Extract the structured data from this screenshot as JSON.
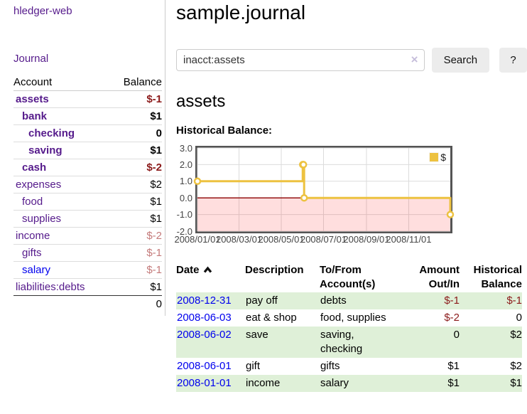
{
  "colors": {
    "link_visited": "#551a8b",
    "link_unvisited": "#0000ee",
    "negative_strong": "#8b1a1a",
    "negative_muted": "#c47a7a",
    "row_stripe_green": "#dff0d8",
    "series_yellow": "#edc240",
    "negative_region_pink": "rgba(255,0,0,0.13)",
    "zero_line_red": "#8b0000",
    "plot_border_gray": "#545454",
    "gridline_gray": "#dcdcdc"
  },
  "sidebar": {
    "app_title": "hledger-web",
    "journal_link": "Journal",
    "accounts": {
      "header_account": "Account",
      "header_balance": "Balance",
      "rows": [
        {
          "name": "assets",
          "balance": "$-1",
          "indent": 1,
          "emph": true,
          "balance_tone": "neg",
          "link_tone": "visited"
        },
        {
          "name": "bank",
          "balance": "$1",
          "indent": 2,
          "emph": true,
          "balance_tone": "pos",
          "link_tone": "visited"
        },
        {
          "name": "checking",
          "balance": "0",
          "indent": 3,
          "emph": true,
          "balance_tone": "pos",
          "link_tone": "visited"
        },
        {
          "name": "saving",
          "balance": "$1",
          "indent": 3,
          "emph": true,
          "balance_tone": "pos",
          "link_tone": "visited"
        },
        {
          "name": "cash",
          "balance": "$-2",
          "indent": 2,
          "emph": true,
          "balance_tone": "neg",
          "link_tone": "visited"
        },
        {
          "name": "expenses",
          "balance": "$2",
          "indent": 1,
          "emph": false,
          "balance_tone": "pos",
          "link_tone": "visited"
        },
        {
          "name": "food",
          "balance": "$1",
          "indent": 2,
          "emph": false,
          "balance_tone": "pos",
          "link_tone": "visited"
        },
        {
          "name": "supplies",
          "balance": "$1",
          "indent": 2,
          "emph": false,
          "balance_tone": "pos",
          "link_tone": "visited"
        },
        {
          "name": "income",
          "balance": "$-2",
          "indent": 1,
          "emph": false,
          "balance_tone": "neg-muted",
          "link_tone": "visited"
        },
        {
          "name": "gifts",
          "balance": "$-1",
          "indent": 2,
          "emph": false,
          "balance_tone": "neg-muted",
          "link_tone": "visited"
        },
        {
          "name": "salary",
          "balance": "$-1",
          "indent": 2,
          "emph": false,
          "balance_tone": "neg-muted",
          "link_tone": "unvisited"
        },
        {
          "name": "liabilities:debts",
          "balance": "$1",
          "indent": 1,
          "emph": false,
          "balance_tone": "pos",
          "link_tone": "visited"
        }
      ],
      "total": "0"
    }
  },
  "main": {
    "page_title": "sample.journal",
    "search": {
      "value": "inacct:assets",
      "clear_icon": "×",
      "search_button": "Search",
      "help_button": "?"
    },
    "account_heading": "assets",
    "chart_title": "Historical Balance:"
  },
  "chart_data": {
    "type": "line",
    "style": "step",
    "title": "Historical Balance",
    "legend_label": "$",
    "legend_position": "top-right",
    "grid": true,
    "xlim": [
      "2008-01-01",
      "2008-12-31"
    ],
    "ylim": [
      -2,
      3
    ],
    "y_ticks": [
      {
        "value": 3,
        "label": "3.0"
      },
      {
        "value": 2,
        "label": "2.0"
      },
      {
        "value": 1,
        "label": "1.0"
      },
      {
        "value": 0,
        "label": "0.0"
      },
      {
        "value": -1,
        "label": "-1.0"
      },
      {
        "value": -2,
        "label": "-2.0"
      }
    ],
    "x_ticks": [
      {
        "date": "2008-01-01",
        "label": "2008/01/01"
      },
      {
        "date": "2008-03-01",
        "label": "2008/03/01"
      },
      {
        "date": "2008-05-01",
        "label": "2008/05/01"
      },
      {
        "date": "2008-07-01",
        "label": "2008/07/01"
      },
      {
        "date": "2008-09-01",
        "label": "2008/09/01"
      },
      {
        "date": "2008-11-01",
        "label": "2008/11/01"
      }
    ],
    "series": [
      {
        "name": "$",
        "color": "#edc240",
        "points": [
          [
            "2008-01-01",
            1
          ],
          [
            "2008-06-01",
            2
          ],
          [
            "2008-06-02",
            2
          ],
          [
            "2008-06-03",
            0
          ],
          [
            "2008-12-31",
            -1
          ]
        ]
      }
    ],
    "negative_region_shaded": true,
    "zero_line": true
  },
  "register": {
    "headers": [
      "Date",
      "Description",
      "To/From Account(s)",
      "Amount Out/In",
      "Historical Balance"
    ],
    "sort_column": "Date",
    "sort_direction": "ascending",
    "rows": [
      {
        "date": "2008-12-31",
        "description": "pay off",
        "accounts": "debts",
        "amount": "$-1",
        "balance": "$-1"
      },
      {
        "date": "2008-06-03",
        "description": "eat & shop",
        "accounts": "food, supplies",
        "amount": "$-2",
        "balance": "0"
      },
      {
        "date": "2008-06-02",
        "description": "save",
        "accounts": "saving, checking",
        "amount": "0",
        "balance": "$2"
      },
      {
        "date": "2008-06-01",
        "description": "gift",
        "accounts": "gifts",
        "amount": "$1",
        "balance": "$2"
      },
      {
        "date": "2008-01-01",
        "description": "income",
        "accounts": "salary",
        "amount": "$1",
        "balance": "$1"
      }
    ]
  }
}
